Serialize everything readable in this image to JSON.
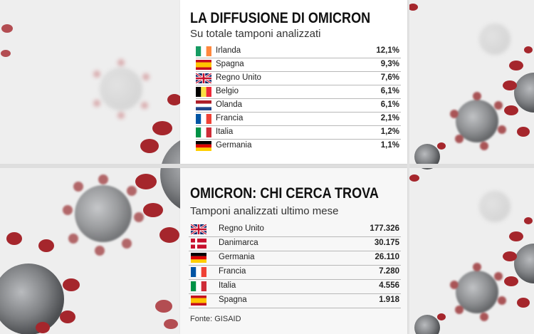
{
  "panel1": {
    "title": "LA DIFFUSIONE DI OMICRON",
    "subtitle": "Su totale tamponi analizzati",
    "rows": [
      {
        "country": "Irlanda",
        "value": "12,1%",
        "flag": "flag-ireland"
      },
      {
        "country": "Spagna",
        "value": "9,3%",
        "flag": "flag-spain"
      },
      {
        "country": "Regno Unito",
        "value": "7,6%",
        "flag": "flag-uk"
      },
      {
        "country": "Belgio",
        "value": "6,1%",
        "flag": "flag-belgium"
      },
      {
        "country": "Olanda",
        "value": "6,1%",
        "flag": "flag-netherlands"
      },
      {
        "country": "Francia",
        "value": "2,1%",
        "flag": "flag-france"
      },
      {
        "country": "Italia",
        "value": "1,2%",
        "flag": "flag-italy"
      },
      {
        "country": "Germania",
        "value": "1,1%",
        "flag": "flag-germany"
      }
    ]
  },
  "panel2": {
    "title": "OMICRON: CHI CERCA TROVA",
    "subtitle": "Tamponi analizzati ultimo mese",
    "rows": [
      {
        "country": "Regno Unito",
        "value": "177.326",
        "flag": "flag-uk"
      },
      {
        "country": "Danimarca",
        "value": "30.175",
        "flag": "flag-denmark"
      },
      {
        "country": "Germania",
        "value": "26.110",
        "flag": "flag-germany"
      },
      {
        "country": "Francia",
        "value": "7.280",
        "flag": "flag-france"
      },
      {
        "country": "Italia",
        "value": "4.556",
        "flag": "flag-italy"
      },
      {
        "country": "Spagna",
        "value": "1.918",
        "flag": "flag-spain"
      }
    ],
    "source": "Fonte: GISAID"
  },
  "colors": {
    "virus_red": "#a5262c",
    "virus_body": "#7d7f82",
    "background": "#e9e9e9"
  }
}
